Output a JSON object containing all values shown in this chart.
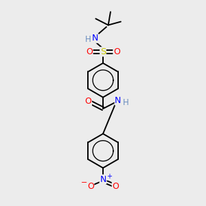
{
  "bg_color": "#ececec",
  "atom_colors": {
    "C": "#000000",
    "H": "#6c8ebf",
    "N": "#0000ff",
    "O": "#ff0000",
    "S": "#cccc00"
  },
  "bond_color": "#000000",
  "bond_width": 1.4,
  "figsize": [
    3.0,
    3.0
  ],
  "dpi": 100,
  "scale": 1.0
}
